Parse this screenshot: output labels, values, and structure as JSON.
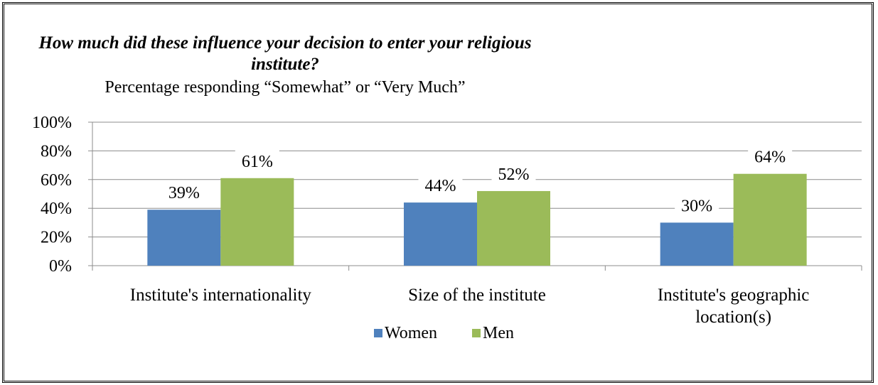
{
  "chart_data": {
    "type": "bar",
    "title": "How much did these influence your decision to enter your religious institute?",
    "subtitle": "Percentage responding “Somewhat” or “Very Much”",
    "categories": [
      [
        "Institute's internationality"
      ],
      [
        "Size of the institute"
      ],
      [
        "Institute's geographic",
        "location(s)"
      ]
    ],
    "series": [
      {
        "name": "Women",
        "color": "#4f81bd",
        "values": [
          39,
          44,
          30
        ]
      },
      {
        "name": "Men",
        "color": "#9bbb59",
        "values": [
          61,
          52,
          64
        ]
      }
    ],
    "data_labels": [
      [
        "39%",
        "44%",
        "30%"
      ],
      [
        "61%",
        "52%",
        "64%"
      ]
    ],
    "ylim": [
      0,
      100
    ],
    "y_ticks": [
      "0%",
      "20%",
      "40%",
      "60%",
      "80%",
      "100%"
    ],
    "grid": true,
    "legend": "bottom"
  }
}
